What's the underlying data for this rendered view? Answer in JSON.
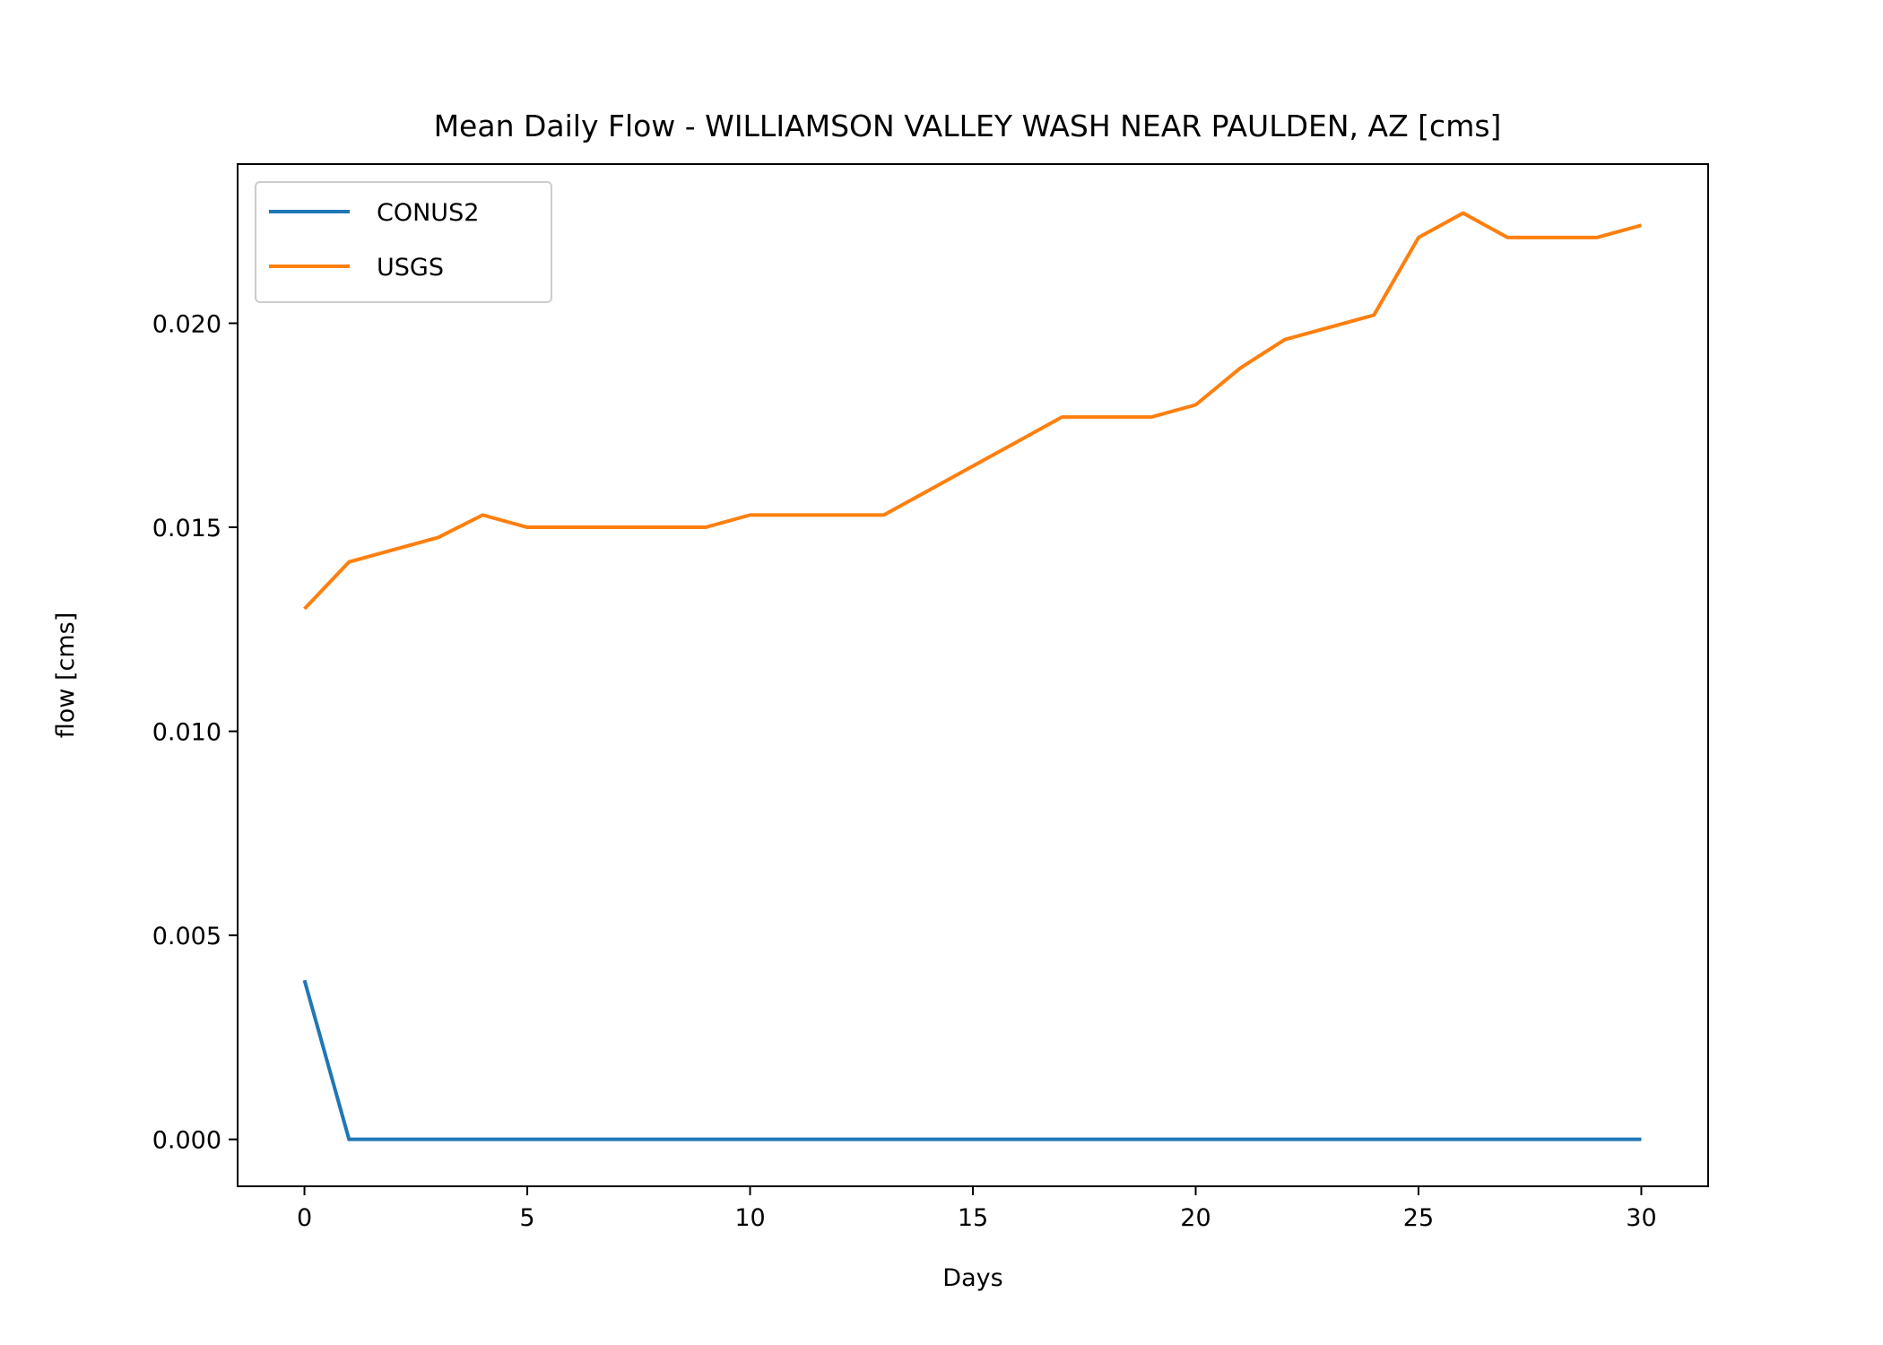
{
  "chart_data": {
    "type": "line",
    "title": "Mean Daily Flow - WILLIAMSON VALLEY WASH NEAR PAULDEN, AZ [cms]",
    "xlabel": "Days",
    "ylabel": "flow [cms]",
    "xlim": [
      -1.5,
      31.5
    ],
    "ylim": [
      -0.00115,
      0.0239
    ],
    "xticks": [
      0,
      5,
      10,
      15,
      20,
      25,
      30
    ],
    "xtick_labels": [
      "0",
      "5",
      "10",
      "15",
      "20",
      "25",
      "30"
    ],
    "yticks": [
      0.0,
      0.005,
      0.01,
      0.015,
      0.02
    ],
    "ytick_labels": [
      "0.000",
      "0.005",
      "0.010",
      "0.015",
      "0.020"
    ],
    "grid": false,
    "legend_position": "top-left",
    "x": [
      0,
      1,
      2,
      3,
      4,
      5,
      6,
      7,
      8,
      9,
      10,
      11,
      12,
      13,
      14,
      15,
      16,
      17,
      18,
      19,
      20,
      21,
      22,
      23,
      24,
      25,
      26,
      27,
      28,
      29,
      30
    ],
    "series": [
      {
        "name": "CONUS2",
        "color": "#1f77b4",
        "values": [
          0.0039,
          0,
          0,
          0,
          0,
          0,
          0,
          0,
          0,
          0,
          0,
          0,
          0,
          0,
          0,
          0,
          0,
          0,
          0,
          0,
          0,
          0,
          0,
          0,
          0,
          0,
          0,
          0,
          0,
          0,
          0
        ]
      },
      {
        "name": "USGS",
        "color": "#ff7f0e",
        "values": [
          0.013,
          0.01415,
          0.01445,
          0.01475,
          0.0153,
          0.015,
          0.015,
          0.015,
          0.015,
          0.015,
          0.0153,
          0.0153,
          0.0153,
          0.0153,
          0.0159,
          0.0165,
          0.0171,
          0.0177,
          0.0177,
          0.0177,
          0.018,
          0.0189,
          0.0196,
          0.0199,
          0.0202,
          0.0221,
          0.0227,
          0.0221,
          0.0221,
          0.0221,
          0.0224
        ]
      }
    ]
  }
}
